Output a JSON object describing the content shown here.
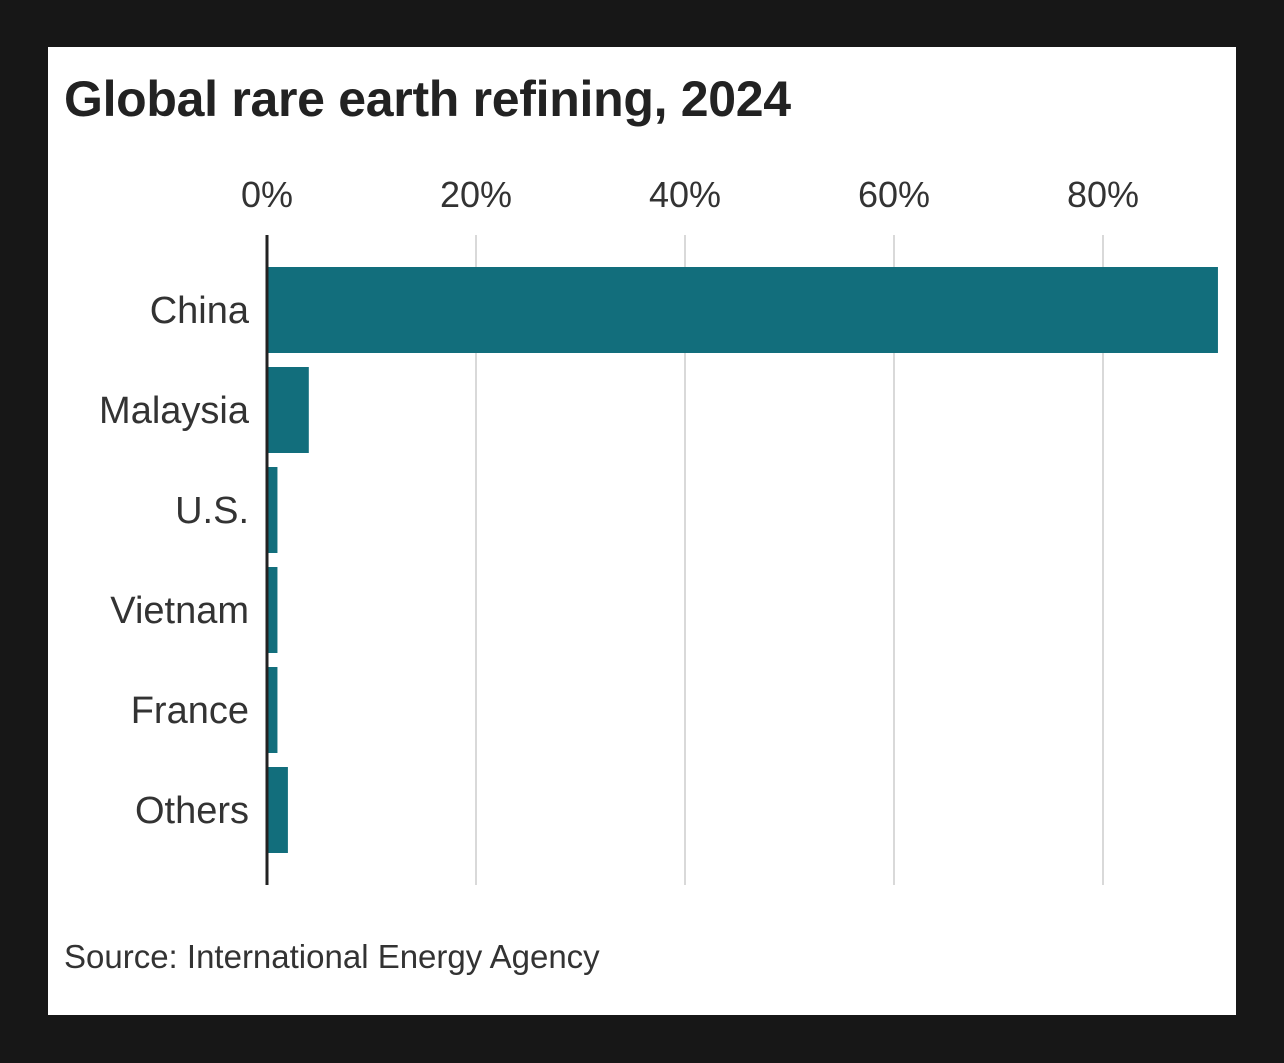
{
  "chart_data": {
    "type": "bar",
    "orientation": "horizontal",
    "title": "Global rare earth refining, 2024",
    "categories": [
      "China",
      "Malaysia",
      "U.S.",
      "Vietnam",
      "France",
      "Others"
    ],
    "values": [
      91,
      4,
      1,
      1,
      1,
      2
    ],
    "unit": "%",
    "xticks": [
      "0%",
      "20%",
      "40%",
      "60%",
      "80%"
    ],
    "xtick_values": [
      0,
      20,
      40,
      60,
      80
    ],
    "xlim": [
      0,
      91
    ],
    "grid": true,
    "xaxis_position": "top",
    "bar_color": "#126e7c",
    "source": "Source: International Energy Agency"
  }
}
